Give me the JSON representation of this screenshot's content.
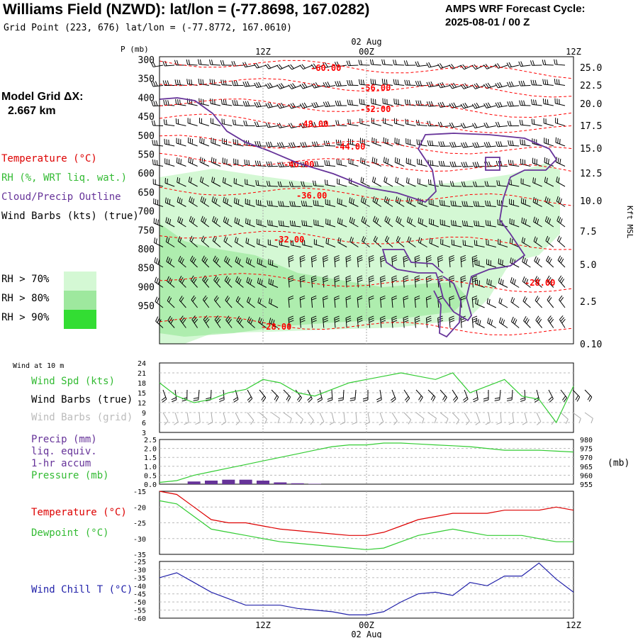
{
  "header": {
    "title": "Williams Field (NZWD):  lat/lon = (-77.8698, 167.0282)",
    "subtitle": "Grid Point (223, 676) lat/lon = (-77.8772, 167.0610)",
    "cycle_line1": "AMPS WRF Forecast Cycle:",
    "cycle_line2": "2025-08-01 / 00  Z",
    "grid_line1": "Model Grid ΔX:",
    "grid_line2": "2.667 km"
  },
  "legend": {
    "temperature": "Temperature (°C)",
    "rh": "RH (%, WRT liq. wat.)",
    "cloud": "Cloud/Precip Outline",
    "wind": "Wind Barbs (kts) (true)",
    "rh70": "RH > 70%",
    "rh80": "RH > 80%",
    "rh90": "RH > 90%",
    "rh70_color": "#d4f8d4",
    "rh80_color": "#9ee89e",
    "rh90_color": "#33dd33"
  },
  "time_axis": {
    "top": [
      "12Z",
      "00Z",
      "12Z"
    ],
    "top_date": "02 Aug",
    "bottom": [
      "12Z",
      "00Z",
      "12Z"
    ],
    "bottom_date": "02 Aug"
  },
  "chart_data": [
    {
      "type": "heatmap",
      "name": "vertical cross-section",
      "ylabel_left": "P (mb)",
      "ylabel_right": "Kft MSL",
      "pressure_ticks": [
        "300",
        "350",
        "400",
        "450",
        "500",
        "550",
        "600",
        "650",
        "700",
        "750",
        "800",
        "850",
        "900",
        "950"
      ],
      "height_ticks": [
        "25.0",
        "22.5",
        "20.0",
        "17.5",
        "15.0",
        "12.5",
        "10.0",
        "7.5",
        "5.0",
        "2.5",
        "0.10"
      ],
      "temperature_labels": [
        "-60.00",
        "-56.00",
        "-52.00",
        "-48.00",
        "-44.00",
        "-40.00",
        "-36.00",
        "-32.00",
        "-28.00",
        "-28.00"
      ],
      "temperature_color": "#ff0000",
      "cloud_color": "#663399"
    },
    {
      "type": "line",
      "name": "wind at 10 m",
      "panel_label": "Wind at 10 m",
      "legend": [
        "Wind Spd (kts)",
        "Wind Barbs (true)",
        "Wind Barbs (grid)"
      ],
      "yticks": [
        "24",
        "21",
        "18",
        "15",
        "12",
        "9",
        "6",
        "3"
      ],
      "ylim": [
        3,
        24
      ],
      "x_hours": [
        0,
        2,
        4,
        6,
        8,
        10,
        12,
        14,
        16,
        18,
        20,
        22,
        24,
        26,
        28,
        30,
        32,
        34,
        36,
        38,
        40,
        42,
        44,
        46,
        48
      ],
      "series": [
        {
          "name": "Wind Spd (kts)",
          "color": "#33cc33",
          "values": [
            18,
            14,
            12,
            13,
            15,
            16,
            19,
            18,
            15,
            14,
            16,
            18,
            19,
            20,
            21,
            20,
            19,
            21,
            15,
            17,
            19,
            14,
            13,
            6,
            17
          ]
        }
      ]
    },
    {
      "type": "bar",
      "name": "precip and pressure",
      "legend": [
        "Precip (mm)",
        "liq. equiv.",
        "1-hr accum",
        "Pressure (mb)"
      ],
      "left_yticks": [
        "2.5",
        "2.0",
        "1.5",
        "1.0",
        "0.5",
        "0.0"
      ],
      "right_yticks": [
        "980",
        "975",
        "970",
        "965",
        "960",
        "955"
      ],
      "right_unit": "(mb)",
      "ylim_precip": [
        0,
        2.5
      ],
      "ylim_pressure": [
        955,
        980
      ],
      "x_hours": [
        0,
        2,
        4,
        6,
        8,
        10,
        12,
        14,
        16,
        18,
        20,
        22,
        24,
        26,
        28,
        30,
        32,
        34,
        36,
        38,
        40,
        42,
        44,
        46,
        48
      ],
      "precip": [
        0,
        0,
        0.15,
        0.2,
        0.25,
        0.25,
        0.2,
        0.1,
        0.05,
        0.02,
        0,
        0,
        0,
        0,
        0,
        0,
        0,
        0,
        0,
        0,
        0,
        0,
        0,
        0,
        0
      ],
      "series": [
        {
          "name": "Pressure (mb)",
          "color": "#33cc33",
          "values": [
            956,
            957,
            960,
            962,
            964,
            966,
            968,
            970,
            972,
            974,
            976,
            977,
            977,
            978,
            978,
            977.5,
            977,
            976.5,
            976,
            975,
            974,
            974,
            974,
            973.5,
            973
          ]
        }
      ],
      "precip_color": "#663399"
    },
    {
      "type": "line",
      "name": "temperature and dewpoint",
      "legend": [
        "Temperature (°C)",
        "Dewpoint (°C)"
      ],
      "yticks": [
        "-15",
        "-20",
        "-25",
        "-30",
        "-35"
      ],
      "ylim": [
        -35,
        -15
      ],
      "x_hours": [
        0,
        2,
        4,
        6,
        8,
        10,
        12,
        14,
        16,
        18,
        20,
        22,
        24,
        26,
        28,
        30,
        32,
        34,
        36,
        38,
        40,
        42,
        44,
        46,
        48
      ],
      "series": [
        {
          "name": "Temperature (°C)",
          "color": "#dd0000",
          "values": [
            -15,
            -16,
            -20,
            -24,
            -25,
            -25,
            -26,
            -27,
            -27.5,
            -28,
            -28.5,
            -29,
            -29,
            -28,
            -26,
            -24,
            -23,
            -22,
            -22,
            -22,
            -21,
            -21,
            -21,
            -20,
            -21
          ]
        },
        {
          "name": "Dewpoint (°C)",
          "color": "#33cc33",
          "values": [
            -18,
            -19,
            -23,
            -27,
            -28,
            -29,
            -30,
            -31,
            -31.5,
            -32,
            -32.5,
            -33,
            -33.5,
            -33,
            -31,
            -29,
            -28,
            -27,
            -28,
            -29,
            -29,
            -29,
            -30,
            -31,
            -31
          ]
        }
      ]
    },
    {
      "type": "line",
      "name": "wind chill",
      "legend": [
        "Wind Chill T (°C)"
      ],
      "yticks": [
        "-25",
        "-30",
        "-35",
        "-40",
        "-45",
        "-50",
        "-55",
        "-60"
      ],
      "ylim": [
        -60,
        -25
      ],
      "x_hours": [
        0,
        2,
        4,
        6,
        8,
        10,
        12,
        14,
        16,
        18,
        20,
        22,
        24,
        26,
        28,
        30,
        32,
        34,
        36,
        38,
        40,
        42,
        44,
        46,
        48
      ],
      "series": [
        {
          "name": "Wind Chill T (°C)",
          "color": "#2222aa",
          "values": [
            -35,
            -32,
            -38,
            -44,
            -48,
            -52,
            -52,
            -52,
            -54,
            -55,
            -56,
            -58,
            -58,
            -56,
            -50,
            -45,
            -44,
            -46,
            -38,
            -40,
            -34,
            -34,
            -26,
            -36,
            -44
          ]
        }
      ]
    }
  ]
}
